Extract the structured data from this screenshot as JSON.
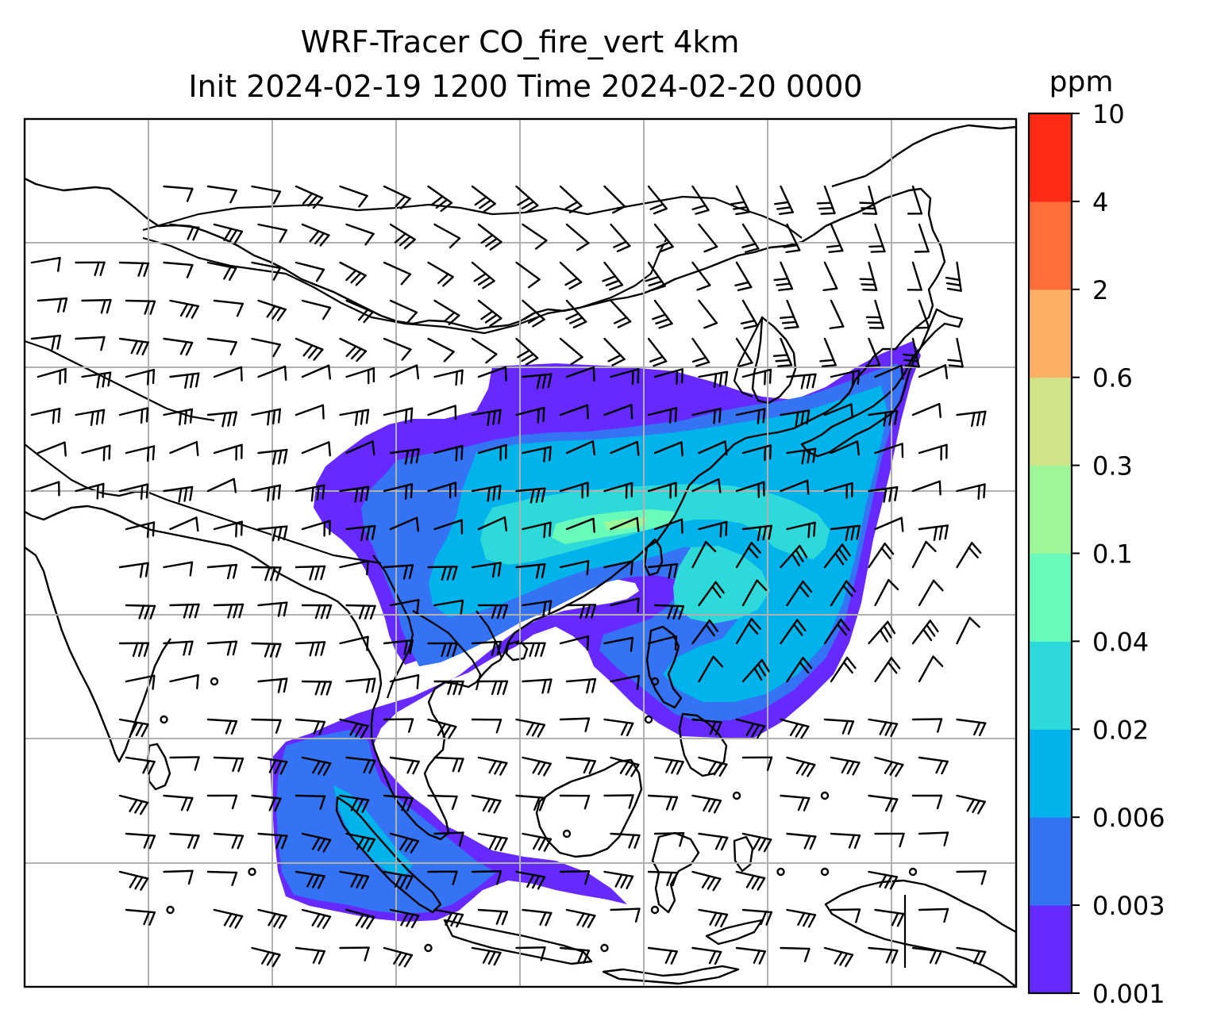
{
  "chart_data": {
    "type": "heatmap",
    "title": "WRF-Tracer CO_fire_vert 4km",
    "subtitle": "Init 2024-02-19 1200 Time 2024-02-20 0000",
    "colorbar": {
      "label": "ppm",
      "levels": [
        "0.001",
        "0.003",
        "0.006",
        "0.02",
        "0.04",
        "0.1",
        "0.3",
        "0.6",
        "2",
        "4",
        "10"
      ],
      "colors": [
        "#6629ff",
        "#3473f3",
        "#00b3ea",
        "#2ed9da",
        "#69fbb9",
        "#9df79a",
        "#cfe388",
        "#fcb066",
        "#ff6d3b",
        "#ff2b17"
      ]
    },
    "grid": true,
    "overlays": [
      "coastlines",
      "country borders",
      "wind barbs"
    ],
    "colors": {
      "grid": "#b0b0b0",
      "coast": "#000000",
      "background": "#ffffff"
    }
  }
}
